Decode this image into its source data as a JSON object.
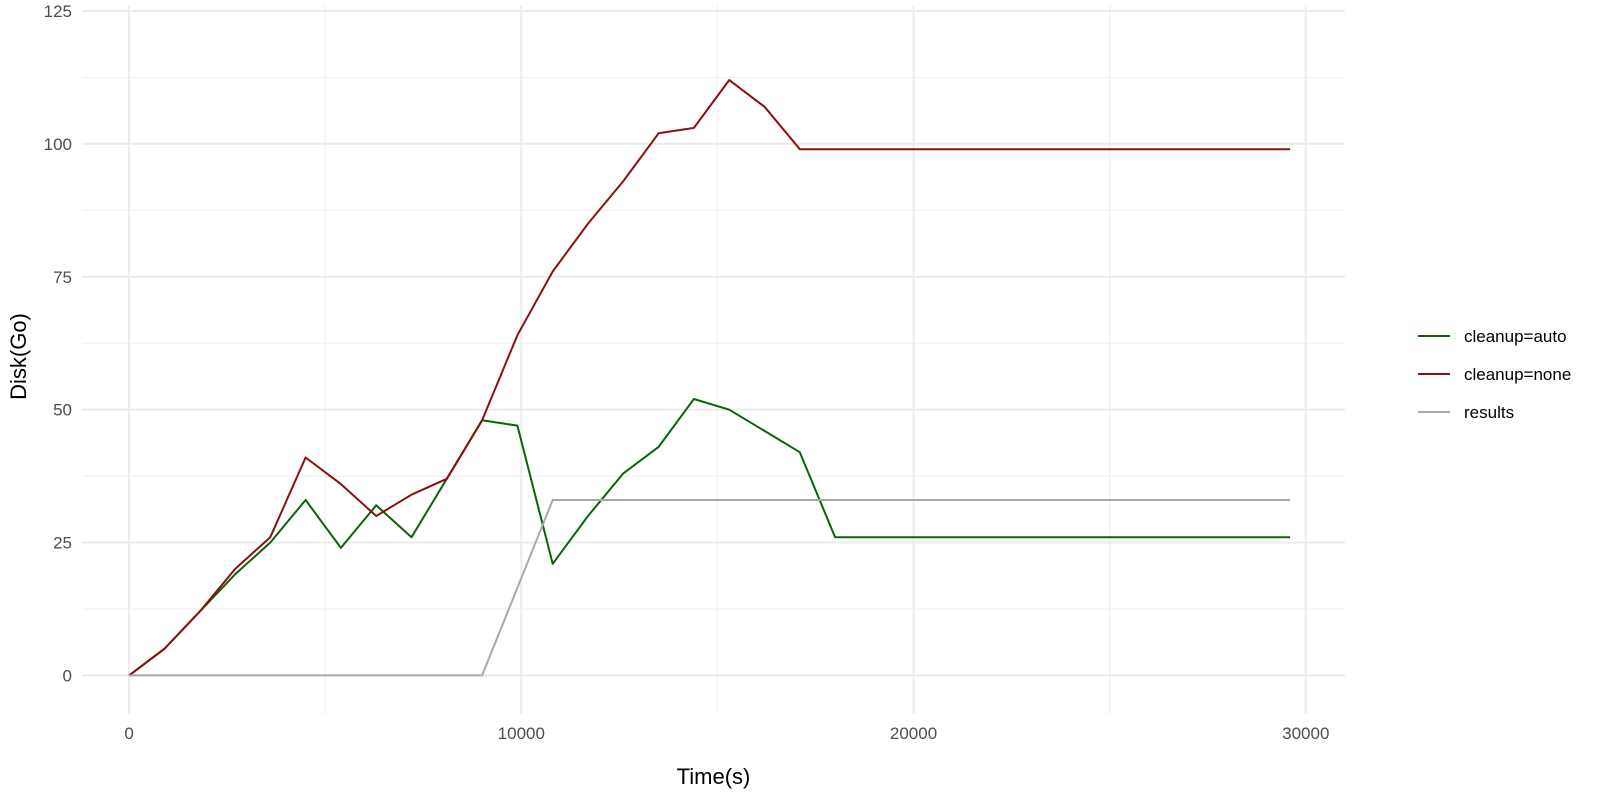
{
  "chart_data": {
    "type": "line",
    "title": "",
    "xlabel": "Time(s)",
    "ylabel": "Disk(Go)",
    "xlim": [
      -1200,
      31000
    ],
    "ylim": [
      -5,
      125
    ],
    "x_ticks": [
      0,
      10000,
      20000,
      30000
    ],
    "y_ticks": [
      0,
      25,
      50,
      75,
      100,
      125
    ],
    "x_tick_labels": [
      "0",
      "10000",
      "20000",
      "30000"
    ],
    "y_tick_labels": [
      "0",
      "25",
      "50",
      "75",
      "100",
      "125"
    ],
    "grid": true,
    "legend_position": "right",
    "series": [
      {
        "name": "cleanup=auto",
        "color": "#0b630b",
        "points": [
          [
            0,
            0
          ],
          [
            900,
            5
          ],
          [
            1800,
            12
          ],
          [
            2700,
            19
          ],
          [
            3600,
            25
          ],
          [
            4500,
            33
          ],
          [
            5400,
            24
          ],
          [
            6300,
            32
          ],
          [
            7200,
            26
          ],
          [
            8100,
            37
          ],
          [
            9000,
            48
          ],
          [
            9900,
            47
          ],
          [
            10800,
            21
          ],
          [
            11700,
            30
          ],
          [
            12600,
            38
          ],
          [
            13500,
            43
          ],
          [
            14400,
            52
          ],
          [
            15300,
            50
          ],
          [
            16200,
            46
          ],
          [
            17100,
            42
          ],
          [
            18000,
            26
          ],
          [
            29600,
            26
          ]
        ]
      },
      {
        "name": "cleanup=none",
        "color": "#8b0f0f",
        "points": [
          [
            0,
            0
          ],
          [
            900,
            5
          ],
          [
            1800,
            12
          ],
          [
            2700,
            20
          ],
          [
            3600,
            26
          ],
          [
            4500,
            41
          ],
          [
            5400,
            36
          ],
          [
            6300,
            30
          ],
          [
            7200,
            34
          ],
          [
            8100,
            37
          ],
          [
            9000,
            48
          ],
          [
            9900,
            64
          ],
          [
            10800,
            76
          ],
          [
            11700,
            85
          ],
          [
            12600,
            93
          ],
          [
            13500,
            102
          ],
          [
            14400,
            103
          ],
          [
            15300,
            112
          ],
          [
            16200,
            107
          ],
          [
            17100,
            99
          ],
          [
            29600,
            99
          ]
        ]
      },
      {
        "name": "results",
        "color": "#a9a9a9",
        "points": [
          [
            0,
            0
          ],
          [
            9000,
            0
          ],
          [
            10800,
            33
          ],
          [
            29600,
            33
          ]
        ]
      }
    ]
  }
}
